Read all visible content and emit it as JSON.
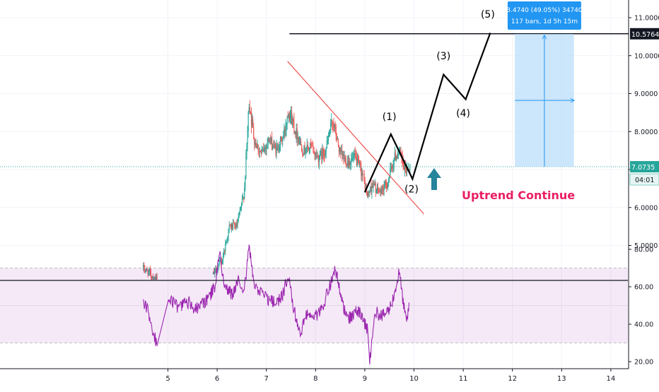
{
  "chart_data": [
    {
      "type": "candlestick",
      "title": "",
      "xlabel": "",
      "ylabel": "",
      "x_ticks": [
        "5",
        "6",
        "7",
        "8",
        "9",
        "10",
        "11",
        "12",
        "13",
        "14"
      ],
      "x_range": [
        4.0,
        14.5
      ],
      "y_ticks": [
        "5.0000",
        "6.0000",
        "7.0000",
        "8.0000",
        "9.0000",
        "10.0000",
        "11.0000"
      ],
      "ylim": [
        4.06,
        11.45
      ],
      "grid": true,
      "price_path": [
        [
          4.5,
          4.4
        ],
        [
          4.6,
          4.3
        ],
        [
          4.75,
          4.1
        ],
        [
          5.9,
          4.2
        ],
        [
          6.1,
          4.6
        ],
        [
          6.25,
          5.5
        ],
        [
          6.4,
          5.5
        ],
        [
          6.55,
          6.4
        ],
        [
          6.65,
          8.8
        ],
        [
          6.75,
          7.8
        ],
        [
          6.9,
          7.4
        ],
        [
          7.05,
          7.8
        ],
        [
          7.2,
          7.5
        ],
        [
          7.35,
          7.9
        ],
        [
          7.45,
          8.6
        ],
        [
          7.6,
          8.0
        ],
        [
          7.75,
          7.5
        ],
        [
          7.9,
          7.6
        ],
        [
          8.05,
          7.3
        ],
        [
          8.2,
          7.5
        ],
        [
          8.35,
          8.3
        ],
        [
          8.5,
          7.4
        ],
        [
          8.65,
          7.2
        ],
        [
          8.8,
          7.3
        ],
        [
          8.95,
          6.9
        ],
        [
          9.05,
          6.3
        ],
        [
          9.15,
          6.6
        ],
        [
          9.3,
          6.4
        ],
        [
          9.45,
          6.6
        ],
        [
          9.6,
          7.3
        ],
        [
          9.7,
          7.5
        ],
        [
          9.8,
          7.0
        ],
        [
          9.9,
          7.07
        ]
      ],
      "rsi_panel": {
        "y_ticks": [
          "20.00",
          "40.00",
          "60.00",
          "80.00"
        ],
        "ylim": [
          16.5,
          83.5
        ],
        "band": [
          30,
          70
        ],
        "series_color": "#9c27b0",
        "path": [
          [
            4.5,
            51
          ],
          [
            4.6,
            47
          ],
          [
            4.7,
            35
          ],
          [
            4.8,
            28
          ],
          [
            4.9,
            42
          ],
          [
            5.0,
            55
          ],
          [
            5.2,
            49
          ],
          [
            5.4,
            52
          ],
          [
            5.6,
            48
          ],
          [
            5.8,
            53
          ],
          [
            5.95,
            60
          ],
          [
            6.05,
            78
          ],
          [
            6.15,
            60
          ],
          [
            6.3,
            56
          ],
          [
            6.45,
            64
          ],
          [
            6.55,
            58
          ],
          [
            6.65,
            82
          ],
          [
            6.75,
            60
          ],
          [
            6.9,
            56
          ],
          [
            7.05,
            53
          ],
          [
            7.2,
            51
          ],
          [
            7.35,
            57
          ],
          [
            7.45,
            66
          ],
          [
            7.55,
            48
          ],
          [
            7.7,
            36
          ],
          [
            7.85,
            47
          ],
          [
            8.0,
            44
          ],
          [
            8.15,
            50
          ],
          [
            8.3,
            61
          ],
          [
            8.4,
            70
          ],
          [
            8.55,
            50
          ],
          [
            8.7,
            43
          ],
          [
            8.85,
            47
          ],
          [
            8.95,
            44
          ],
          [
            9.05,
            37
          ],
          [
            9.1,
            20
          ],
          [
            9.2,
            47
          ],
          [
            9.35,
            44
          ],
          [
            9.5,
            48
          ],
          [
            9.6,
            56
          ],
          [
            9.7,
            68
          ],
          [
            9.8,
            48
          ],
          [
            9.85,
            40
          ],
          [
            9.9,
            51
          ]
        ]
      },
      "price_lines": {
        "target": {
          "label": "10.5764",
          "value": 10.5764,
          "x_start": 7.47
        },
        "current": {
          "label": "7.0735",
          "value": 7.0735,
          "countdown": "04:01",
          "color": "#26a69a"
        }
      },
      "trendline": {
        "from": [
          7.43,
          9.85
        ],
        "to": [
          10.2,
          5.83
        ],
        "color": "#ef5350"
      },
      "wave_path": [
        [
          9.0,
          6.4
        ],
        [
          9.53,
          7.93
        ],
        [
          9.97,
          6.75
        ],
        [
          10.6,
          9.5
        ],
        [
          11.05,
          8.85
        ],
        [
          11.55,
          10.6
        ]
      ],
      "wave_labels": [
        {
          "text": "(1)",
          "x": 9.5,
          "y": 8.3
        },
        {
          "text": "(2)",
          "x": 9.95,
          "y": 6.4
        },
        {
          "text": "(3)",
          "x": 10.6,
          "y": 9.9
        },
        {
          "text": "(4)",
          "x": 11.0,
          "y": 8.4
        },
        {
          "text": "(5)",
          "x": 11.5,
          "y": 11.0
        }
      ],
      "measure_box": {
        "x_from": 12.05,
        "x_to": 13.25,
        "y_from": 7.07,
        "y_to": 10.57,
        "line1": "3.4740 (49.05%) 34740",
        "line2": "117 bars, 1d 5h 15m"
      },
      "annotation_text": "Uptrend Continue",
      "colors": {
        "up": "#26a69a",
        "down": "#ef5350",
        "annotation": "#e91e63",
        "arrow": "#26849b",
        "measure_fill": "#bbdefb",
        "measure_line": "#2196f3"
      }
    }
  ]
}
